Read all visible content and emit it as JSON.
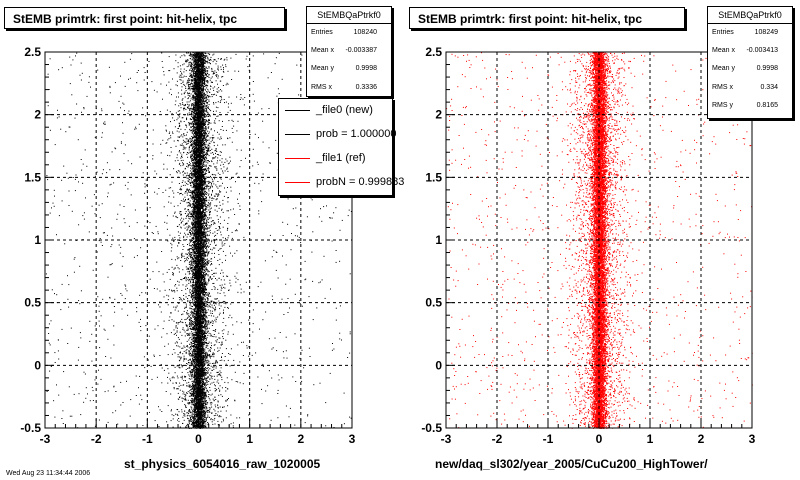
{
  "panels": [
    {
      "title": "StEMB primtrk: first point: hit-helix, tpc",
      "xlabel": "st_physics_6054016_raw_1020005",
      "stats": {
        "title": "StEMBQaPtrkf0",
        "rows": [
          {
            "k": "Entries",
            "v": "108240"
          },
          {
            "k": "Mean x",
            "v": "-0.003387"
          },
          {
            "k": "Mean y",
            "v": "0.9998"
          },
          {
            "k": "RMS x",
            "v": "0.3336"
          }
        ]
      },
      "legend": [
        {
          "label": "_file0 (new)",
          "color": "#000000"
        },
        {
          "label": "prob = 1.000000",
          "color": "#000000"
        },
        {
          "label": "_file1 (ref)",
          "color": "#ff0000"
        },
        {
          "label": "probN = 0.999883",
          "color": "#ff0000"
        }
      ]
    },
    {
      "title": "StEMB primtrk: first point: hit-helix, tpc",
      "xlabel": "new/daq_sl302/year_2005/CuCu200_HighTower/",
      "stats": {
        "title": "StEMBQaPtrkf0",
        "rows": [
          {
            "k": "Entries",
            "v": "108249"
          },
          {
            "k": "Mean x",
            "v": "-0.003413"
          },
          {
            "k": "Mean y",
            "v": "0.9998"
          },
          {
            "k": "RMS x",
            "v": "0.334"
          },
          {
            "k": "RMS y",
            "v": "0.8165"
          }
        ]
      }
    }
  ],
  "footer": "Wed Aug 23 11:34:44 2006",
  "chart_data": [
    {
      "type": "scatter",
      "title": "StEMB primtrk: first point: hit-helix, tpc",
      "xlabel": "st_physics_6054016_raw_1020005",
      "ylabel": "",
      "xlim": [
        -3,
        3
      ],
      "ylim": [
        -0.5,
        2.5
      ],
      "x_ticks": [
        -3,
        -2,
        -1,
        0,
        1,
        2,
        3
      ],
      "y_ticks": [
        -0.5,
        0,
        0.5,
        1,
        1.5,
        2,
        2.5
      ],
      "grid": true,
      "series": [
        {
          "name": "_file0 (new)",
          "color": "#000000",
          "entries": 108240,
          "mean_x": -0.003387,
          "mean_y": 0.9998,
          "rms_x": 0.3336
        }
      ]
    },
    {
      "type": "scatter",
      "title": "StEMB primtrk: first point: hit-helix, tpc",
      "xlabel": "new/daq_sl302/year_2005/CuCu200_HighTower/",
      "ylabel": "",
      "xlim": [
        -3,
        3
      ],
      "ylim": [
        -0.5,
        2.5
      ],
      "x_ticks": [
        -3,
        -2,
        -1,
        0,
        1,
        2,
        3
      ],
      "y_ticks": [
        -0.5,
        0,
        0.5,
        1,
        1.5,
        2,
        2.5
      ],
      "grid": true,
      "series": [
        {
          "name": "_file1 (ref)",
          "color": "#ff0000",
          "entries": 108249,
          "mean_x": -0.003413,
          "mean_y": 0.9998,
          "rms_x": 0.334,
          "rms_y": 0.8165
        }
      ]
    }
  ]
}
